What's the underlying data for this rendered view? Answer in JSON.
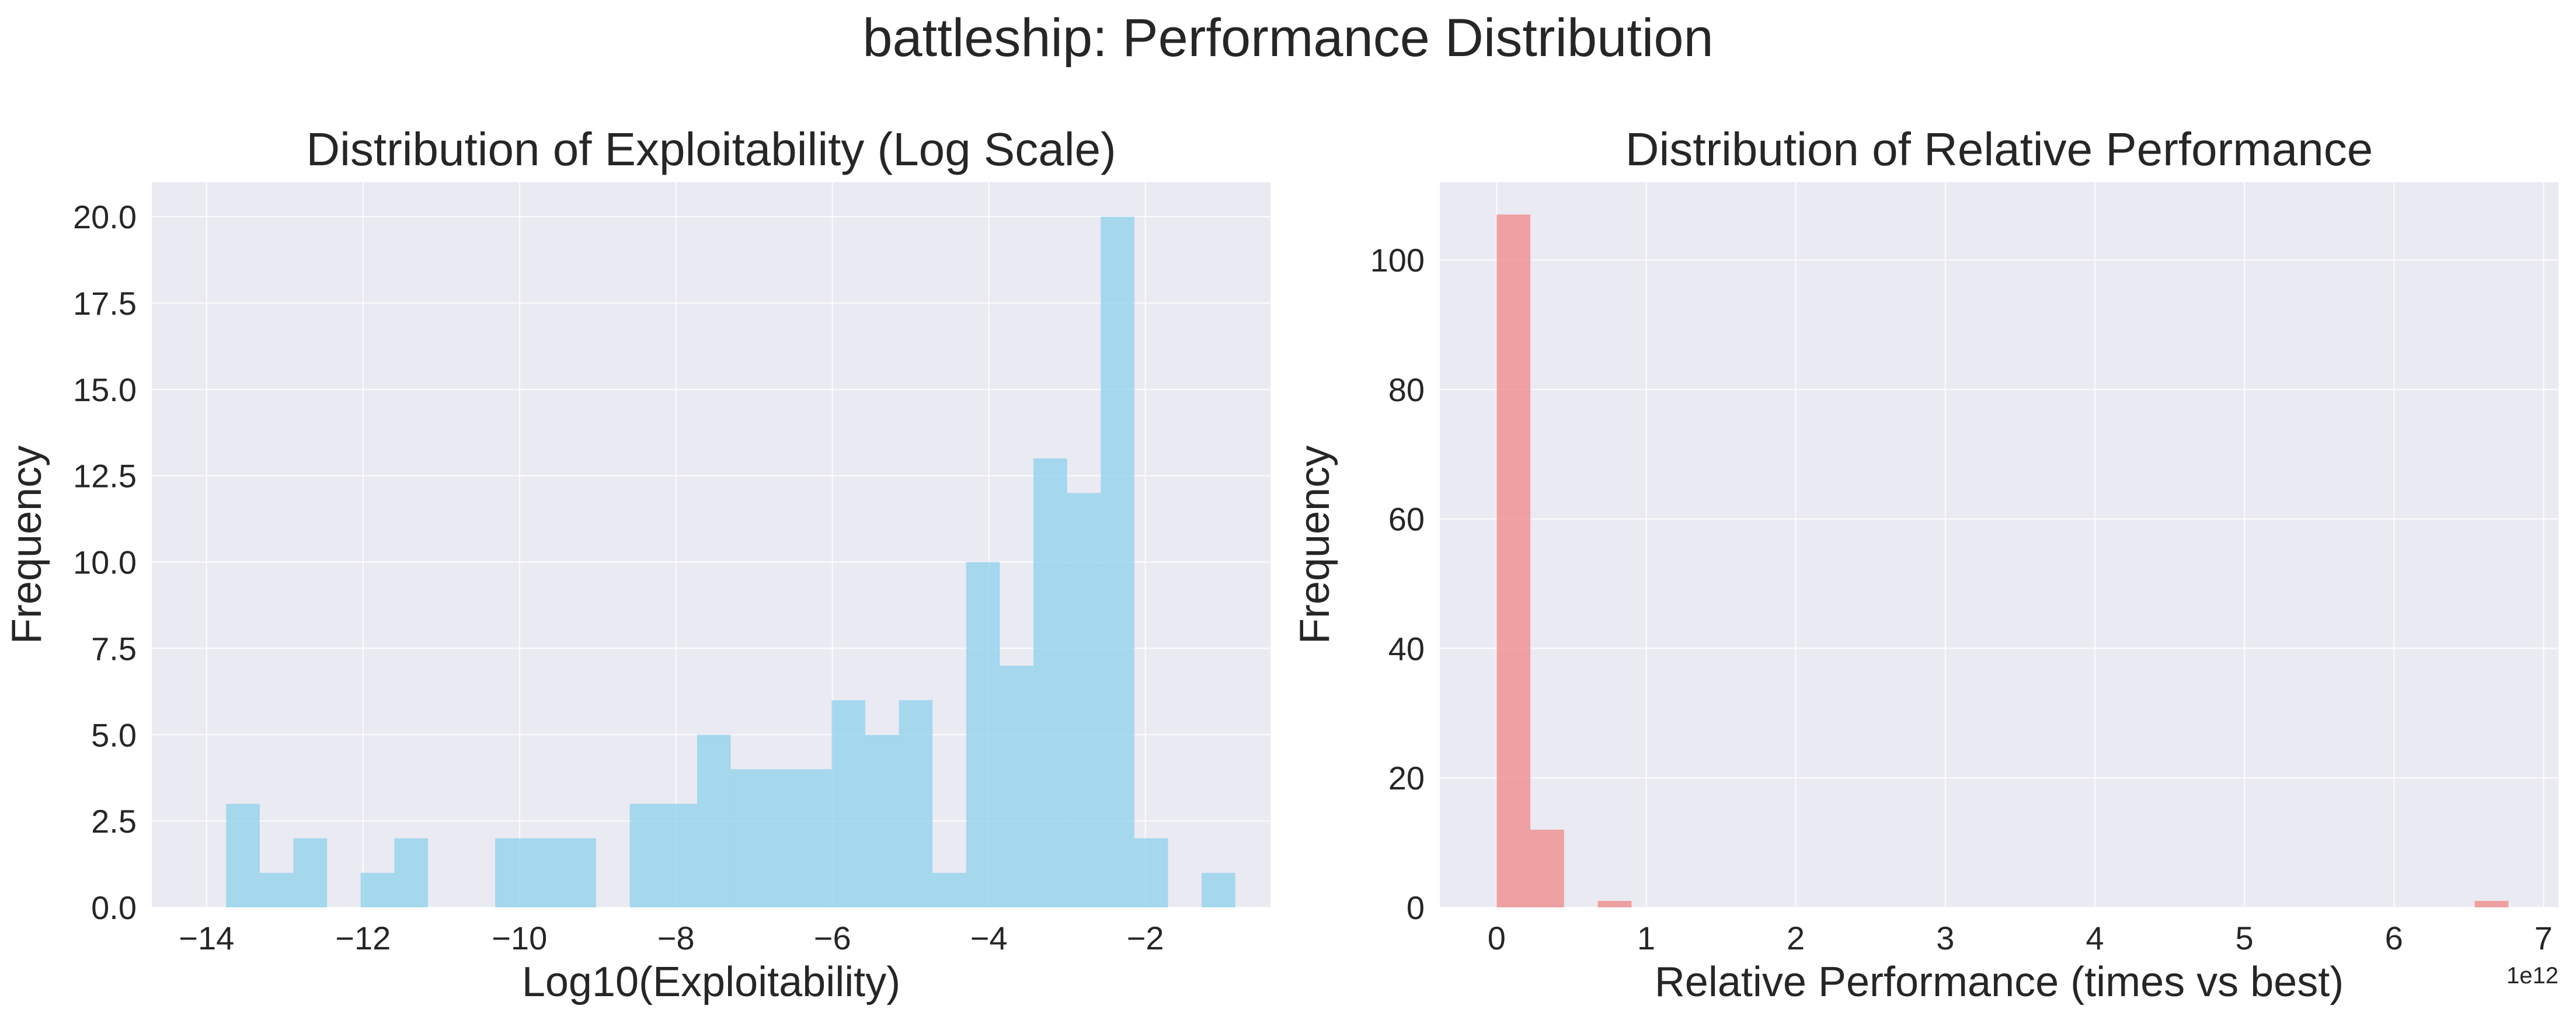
{
  "figure": {
    "title": "battleship: Performance Distribution"
  },
  "chart_data": [
    {
      "type": "bar",
      "title": "Distribution of Exploitability (Log Scale)",
      "xlabel": "Log10(Exploitability)",
      "ylabel": "Frequency",
      "xlim": [
        -14.7,
        -0.4
      ],
      "ylim": [
        0,
        21
      ],
      "xticks": [
        -14,
        -12,
        -10,
        -8,
        -6,
        -4,
        -2
      ],
      "xtick_labels": [
        "−14",
        "−12",
        "−10",
        "−8",
        "−6",
        "−4",
        "−2"
      ],
      "yticks": [
        0,
        2.5,
        5,
        7.5,
        10,
        12.5,
        15,
        17.5,
        20
      ],
      "ytick_labels": [
        "0.0",
        "2.5",
        "5.0",
        "7.5",
        "10.0",
        "12.5",
        "15.0",
        "17.5",
        "20.0"
      ],
      "color": "#87ceeb",
      "grid": true,
      "bin_edges": [
        -13.75,
        -13.32,
        -12.89,
        -12.46,
        -12.03,
        -11.6,
        -11.17,
        -10.74,
        -10.31,
        -9.88,
        -9.45,
        -9.02,
        -8.59,
        -8.16,
        -7.73,
        -7.3,
        -6.87,
        -6.44,
        -6.01,
        -5.58,
        -5.15,
        -4.72,
        -4.29,
        -3.86,
        -3.43,
        -3.0,
        -2.57,
        -2.14,
        -1.71,
        -1.28,
        -0.85
      ],
      "counts": [
        3,
        1,
        2,
        0,
        1,
        2,
        0,
        0,
        2,
        2,
        2,
        0,
        3,
        3,
        5,
        4,
        4,
        4,
        6,
        5,
        6,
        1,
        10,
        7,
        13,
        12,
        20,
        2,
        0,
        1
      ]
    },
    {
      "type": "bar",
      "title": "Distribution of Relative Performance",
      "xlabel": "Relative Performance (times vs best)",
      "ylabel": "Frequency",
      "x_offset_label": "1e12",
      "xlim": [
        -0.38,
        7.1
      ],
      "ylim": [
        0,
        112
      ],
      "xticks": [
        0,
        1,
        2,
        3,
        4,
        5,
        6,
        7
      ],
      "xtick_labels": [
        "0",
        "1",
        "2",
        "3",
        "4",
        "5",
        "6",
        "7"
      ],
      "yticks": [
        0,
        20,
        40,
        60,
        80,
        100
      ],
      "ytick_labels": [
        "0",
        "20",
        "40",
        "60",
        "80",
        "100"
      ],
      "color": "#f08080",
      "grid": true,
      "bin_edges": [
        0.0,
        0.2255,
        0.451,
        0.6765,
        0.902,
        1.1275,
        1.353,
        1.5785,
        1.804,
        2.0295,
        2.255,
        2.4805,
        2.706,
        2.9315,
        3.157,
        3.3825,
        3.608,
        3.8335,
        4.059,
        4.2845,
        4.51,
        4.7355,
        4.961,
        5.1865,
        5.412,
        5.6375,
        5.863,
        6.0885,
        6.314,
        6.5395,
        6.765
      ],
      "counts": [
        107,
        12,
        0,
        1,
        0,
        0,
        0,
        0,
        0,
        0,
        0,
        0,
        0,
        0,
        0,
        0,
        0,
        0,
        0,
        0,
        0,
        0,
        0,
        0,
        0,
        0,
        0,
        0,
        0,
        1
      ]
    }
  ]
}
